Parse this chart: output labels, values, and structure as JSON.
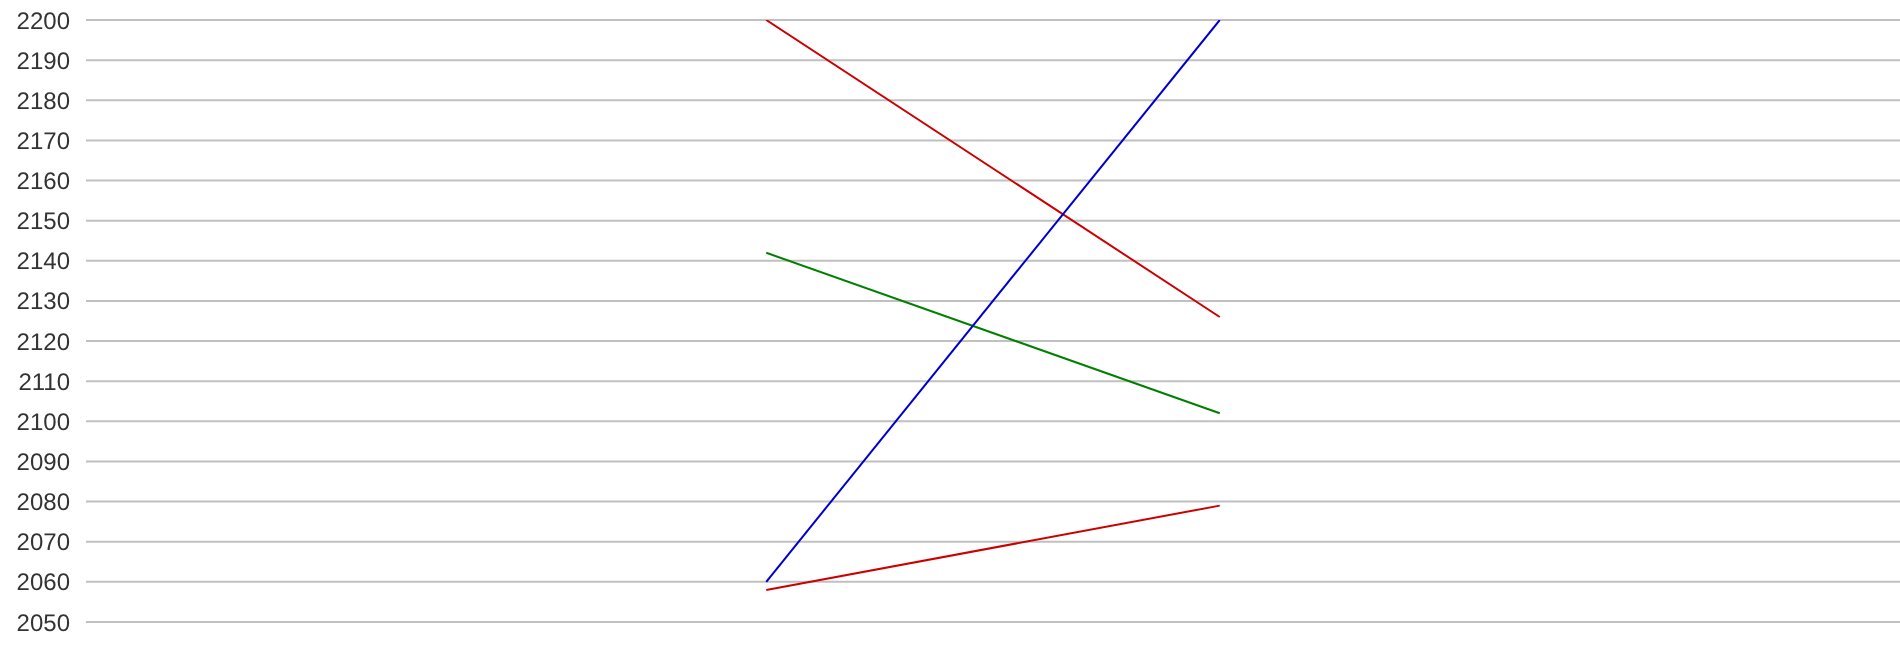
{
  "chart_data": {
    "type": "line",
    "categories": [
      null,
      null,
      null,
      null
    ],
    "series": [
      {
        "color": "#cc0000",
        "values": [
          null,
          2200,
          2126,
          null
        ]
      },
      {
        "color": "#008000",
        "values": [
          null,
          2142,
          2102,
          null
        ]
      },
      {
        "color": "#0000cc",
        "values": [
          null,
          2060,
          2200,
          null
        ]
      },
      {
        "color": "#cc0000",
        "values": [
          null,
          2058,
          2079,
          null
        ]
      }
    ],
    "ylim": [
      2050,
      2200
    ],
    "yticks": [
      2050,
      2060,
      2070,
      2080,
      2090,
      2100,
      2110,
      2120,
      2130,
      2140,
      2150,
      2160,
      2170,
      2180,
      2190,
      2200
    ],
    "grid": "y",
    "tick_labels": "y",
    "marker": "none",
    "line_style": "solid"
  }
}
